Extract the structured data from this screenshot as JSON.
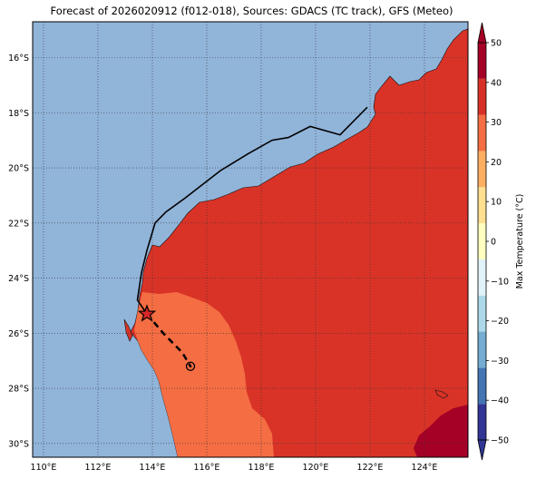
{
  "title": "Forecast of 2026020912 (f012-018), Sources: GDACS (TC track), GFS (Meteo)",
  "map": {
    "lon_ticks": [
      "110°E",
      "112°E",
      "114°E",
      "116°E",
      "118°E",
      "120°E",
      "122°E",
      "124°E"
    ],
    "lat_ticks": [
      "16°S",
      "18°S",
      "20°S",
      "22°S",
      "24°S",
      "26°S",
      "28°S",
      "30°S"
    ],
    "lon_range": [
      109.6,
      125.6
    ],
    "lat_range": [
      -30.5,
      -14.7
    ],
    "grid": true,
    "ocean_color": "#91b4d9",
    "land_color_30_40": "#d93327",
    "land_color_20_30": "#f46d43",
    "land_color_40_50": "#a50026"
  },
  "tc_track": {
    "past_track": [
      [
        121.9,
        -17.8
      ],
      [
        120.9,
        -18.8
      ],
      [
        119.8,
        -18.5
      ],
      [
        119.0,
        -18.9
      ],
      [
        118.4,
        -19.0
      ],
      [
        117.5,
        -19.5
      ],
      [
        116.5,
        -20.1
      ],
      [
        115.2,
        -21.1
      ],
      [
        114.5,
        -21.6
      ],
      [
        114.1,
        -22.0
      ],
      [
        113.8,
        -23.0
      ],
      [
        113.6,
        -23.8
      ],
      [
        113.45,
        -24.8
      ],
      [
        113.8,
        -25.3
      ]
    ],
    "current_position": [
      113.8,
      -25.3
    ],
    "forecast_track": [
      [
        113.8,
        -25.3
      ],
      [
        114.4,
        -26.0
      ],
      [
        115.1,
        -26.7
      ],
      [
        115.4,
        -27.2
      ]
    ],
    "forecast_end": [
      115.4,
      -27.2
    ]
  },
  "colorbar": {
    "label": "Max Temperature (°C)",
    "ticks": [
      "50",
      "40",
      "30",
      "20",
      "10",
      "0",
      "−10",
      "−20",
      "−30",
      "−40",
      "−50"
    ],
    "tick_values": [
      50,
      40,
      30,
      20,
      10,
      0,
      -10,
      -20,
      -30,
      -40,
      -50
    ],
    "range": [
      -50,
      50
    ],
    "colors": [
      "#313695",
      "#4575b4",
      "#74add1",
      "#abd9e9",
      "#e0f3f8",
      "#ffffbf",
      "#fee090",
      "#fdae61",
      "#f46d43",
      "#d73027",
      "#a50026"
    ]
  }
}
